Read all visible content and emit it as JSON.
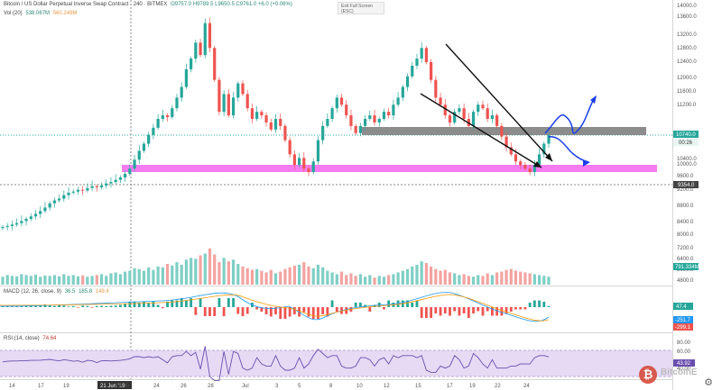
{
  "header": {
    "symbol_title": "Bitcoin / US Dollar Perpetual Inverse Swap Contract · 240 · BITMEX",
    "ohlc": "O9757.0  H9789.5  L9650.5  C9761.0  +6.0 (+0.06%)",
    "exit_fullscreen": "Exit Full Screen (ESC)"
  },
  "volume_legend": {
    "name": "Vol (20)",
    "value1": "538.067M",
    "value2": "560.249M"
  },
  "macd_legend": {
    "name": "MACD (12, 26, close, 9)",
    "v1": "36.5",
    "v2": "185.8",
    "v3": "149.4"
  },
  "rsi_legend": {
    "name": "RSI (14, close)",
    "value": "74.64"
  },
  "price_axis": [
    "14000.0",
    "13600.0",
    "13200.0",
    "12800.0",
    "12400.0",
    "12000.0",
    "11600.0",
    "11200.0",
    "10400.0",
    "10000.0",
    "9600.0",
    "9200.0",
    "8800.0",
    "8400.0"
  ],
  "price_tags": {
    "current": "10740.0",
    "countdown": "00:26",
    "level": "9354.0"
  },
  "volume_axis": [
    "8000.0",
    "7200.0",
    "6400.0",
    "5600.0",
    "4800.0"
  ],
  "volume_tag": "791.334M",
  "macd_tags": [
    "47.4",
    "-251.7",
    "-299.1"
  ],
  "rsi_axis": [
    "80.00",
    "60.00",
    "40.00"
  ],
  "rsi_tag": "43.92",
  "time_axis": [
    "14",
    "17",
    "19",
    "21 Jun '19",
    "04:00",
    "24",
    "26",
    "28",
    "Jul",
    "3",
    "5",
    "8",
    "10",
    "12",
    "15",
    "17",
    "19",
    "22",
    "24"
  ],
  "watermark": {
    "text": "BitcoinE",
    "coin": "₿"
  },
  "colors": {
    "up": "#26a69a",
    "down": "#ef5350",
    "support": "#f47cf0",
    "resistance": "#8c8c8c",
    "projection": "#1a3ee8",
    "rsi_band": "#e6daf5"
  },
  "chart_data": {
    "type": "candlestick",
    "title": "Bitcoin / US Dollar Perpetual Inverse Swap Contract · 240 · BITMEX",
    "x_range": [
      "14 Jun 2019",
      "24 Jul 2019"
    ],
    "ylim": [
      8000,
      14400
    ],
    "series": [
      {
        "name": "price",
        "close": [
          8150,
          8180,
          8220,
          8260,
          8320,
          8380,
          8450,
          8520,
          8600,
          8700,
          8820,
          8900,
          8950,
          9050,
          9120,
          9150,
          9200,
          9180,
          9250,
          9300,
          9270,
          9320,
          9380,
          9420,
          9480,
          9550,
          9650,
          9800,
          10050,
          10300,
          10500,
          10750,
          10950,
          11200,
          11300,
          11250,
          11500,
          11800,
          12100,
          12600,
          12900,
          13350,
          13000,
          13900,
          13200,
          12300,
          11400,
          11900,
          11300,
          11800,
          12200,
          11900,
          11500,
          11200,
          11400,
          11300,
          11100,
          10900,
          11200,
          11000,
          10600,
          10200,
          9900,
          10100,
          9800,
          9700,
          10000,
          10600,
          11000,
          11200,
          11500,
          11800,
          11600,
          11300,
          11000,
          10800,
          11000,
          11200,
          11300,
          11100,
          11200,
          11400,
          11300,
          11600,
          11800,
          12100,
          12400,
          12700,
          12900,
          13200,
          12800,
          12300,
          11800,
          11600,
          11300,
          11100,
          11400,
          11500,
          11200,
          11000,
          11400,
          11600,
          11500,
          11200,
          11300,
          11000,
          10700,
          10400,
          10200,
          10000,
          9900,
          9800,
          9700,
          9900,
          10200,
          10500,
          10740
        ]
      },
      {
        "name": "Vol (20)",
        "values": [
          5100,
          5300,
          5200,
          5150,
          5400,
          5300,
          5200,
          5350,
          5100,
          5250,
          5200,
          5300,
          5150,
          5400,
          5200,
          5300,
          5150,
          5250,
          5100,
          5200,
          5300,
          5400,
          5200,
          5500,
          5600,
          5400,
          5700,
          5800,
          6100,
          6000,
          5800,
          6200,
          5900,
          6300,
          6200,
          6600,
          6400,
          6800,
          6500,
          7100,
          7300,
          7200,
          7600,
          7800,
          8400,
          7700,
          6800,
          7300,
          6900,
          7100,
          6600,
          6300,
          6100,
          5900,
          6000,
          5800,
          5600,
          5900,
          5500,
          5700,
          6000,
          6200,
          6400,
          6500,
          6800,
          6300,
          6100,
          6500,
          6200,
          5800,
          5600,
          5400,
          5700,
          5300,
          5500,
          5200,
          5400,
          5100,
          5300,
          5000,
          5200,
          5100,
          5300,
          5400,
          5600,
          5800,
          6000,
          6300,
          6500,
          6900,
          6700,
          6300,
          6000,
          5800,
          5900,
          5600,
          5500,
          5300,
          5400,
          5200,
          5100,
          5300,
          5200,
          5500,
          5300,
          5600,
          5700,
          5900,
          6000,
          5800,
          5700,
          5600,
          5500,
          5400,
          5300,
          5200,
          5100
        ]
      }
    ],
    "levels": [
      {
        "label": "support",
        "value": 9300
      },
      {
        "label": "resistance",
        "value": 10740
      }
    ]
  }
}
